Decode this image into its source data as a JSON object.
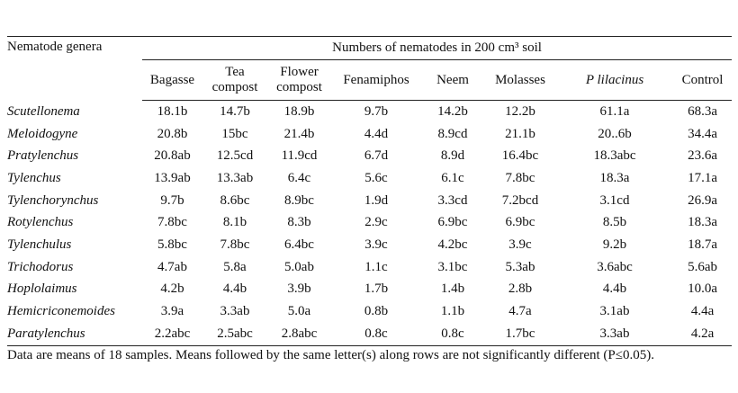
{
  "table": {
    "row_header": "Nematode genera",
    "spanner": "Numbers of nematodes in 200 cm³ soil",
    "columns": [
      "Bagasse",
      "Tea compost",
      "Flower compost",
      "Fenamiphos",
      "Neem",
      "Molasses",
      "P lilacinus",
      "Control"
    ],
    "rows": [
      [
        "Scutellonema",
        "18.1b",
        "14.7b",
        "18.9b",
        "9.7b",
        "14.2b",
        "12.2b",
        "61.1a",
        "68.3a"
      ],
      [
        "Meloidogyne",
        "20.8b",
        "15bc",
        "21.4b",
        "4.4d",
        "8.9cd",
        "21.1b",
        "20..6b",
        "34.4a"
      ],
      [
        "Pratylenchus",
        "20.8ab",
        "12.5cd",
        "11.9cd",
        "6.7d",
        "8.9d",
        "16.4bc",
        "18.3abc",
        "23.6a"
      ],
      [
        "Tylenchus",
        "13.9ab",
        "13.3ab",
        "6.4c",
        "5.6c",
        "6.1c",
        "7.8bc",
        "18.3a",
        "17.1a"
      ],
      [
        "Tylenchorynchus",
        "9.7b",
        "8.6bc",
        "8.9bc",
        "1.9d",
        "3.3cd",
        "7.2bcd",
        "3.1cd",
        "26.9a"
      ],
      [
        "Rotylenchus",
        "7.8bc",
        "8.1b",
        "8.3b",
        "2.9c",
        "6.9bc",
        "6.9bc",
        "8.5b",
        "18.3a"
      ],
      [
        "Tylenchulus",
        "5.8bc",
        "7.8bc",
        "6.4bc",
        "3.9c",
        "4.2bc",
        "3.9c",
        "9.2b",
        "18.7a"
      ],
      [
        "Trichodorus",
        "4.7ab",
        "5.8a",
        "5.0ab",
        "1.1c",
        "3.1bc",
        "5.3ab",
        "3.6abc",
        "5.6ab"
      ],
      [
        "Hoplolaimus",
        "4.2b",
        "4.4b",
        "3.9b",
        "1.7b",
        "1.4b",
        "2.8b",
        "4.4b",
        "10.0a"
      ],
      [
        "Hemicriconemoides",
        "3.9a",
        "3.3ab",
        "5.0a",
        "0.8b",
        "1.1b",
        "4.7a",
        "3.1ab",
        "4.4a"
      ],
      [
        "Paratylenchus",
        "2.2abc",
        "2.5abc",
        "2.8abc",
        "0.8c",
        "0.8c",
        "1.7bc",
        "3.3ab",
        "4.2a"
      ]
    ]
  },
  "footnote": "Data are means of 18 samples. Means followed by the same letter(s) along rows are not significantly different (P≤0.05)."
}
